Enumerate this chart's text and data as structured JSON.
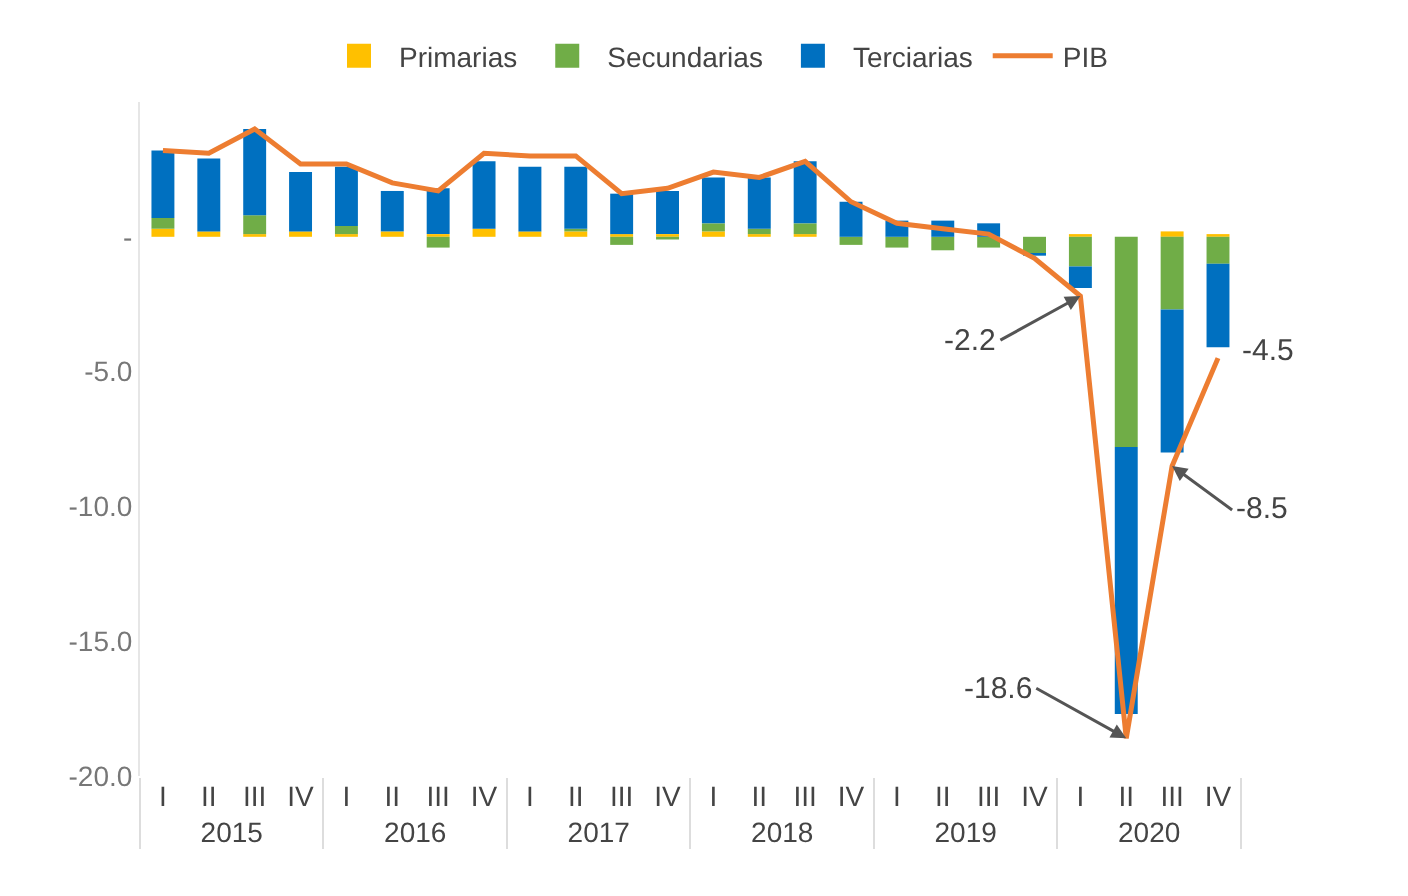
{
  "chart_data": {
    "type": "bar",
    "stacked": true,
    "categories": [
      "I",
      "II",
      "III",
      "IV",
      "I",
      "II",
      "III",
      "IV",
      "I",
      "II",
      "III",
      "IV",
      "I",
      "II",
      "III",
      "IV",
      "I",
      "II",
      "III",
      "IV",
      "I",
      "II",
      "III",
      "IV"
    ],
    "annotations": [
      "2015",
      "2016",
      "2017",
      "2018",
      "2019",
      "2020"
    ],
    "series": [
      {
        "name": "Primarias",
        "color": "#ffc000",
        "values": [
          0.3,
          0.2,
          0.1,
          0.2,
          0.1,
          0.2,
          0.1,
          0.3,
          0.2,
          0.2,
          0.1,
          0.1,
          0.2,
          0.1,
          0.1,
          0.0,
          0.0,
          0.0,
          0.0,
          0.0,
          0.1,
          0.0,
          0.2,
          0.1
        ]
      },
      {
        "name": "Secundarias",
        "color": "#70ad47",
        "values": [
          0.4,
          0.0,
          0.7,
          0.0,
          0.3,
          0.0,
          -0.4,
          0.0,
          0.0,
          0.1,
          -0.3,
          -0.1,
          0.3,
          0.2,
          0.4,
          -0.3,
          -0.4,
          -0.5,
          -0.4,
          -0.6,
          -1.1,
          -7.8,
          -2.7,
          -1.0
        ]
      },
      {
        "name": "Terciarias",
        "color": "#0070c0",
        "values": [
          2.5,
          2.7,
          3.2,
          2.2,
          2.2,
          1.5,
          1.7,
          2.5,
          2.4,
          2.3,
          1.5,
          1.6,
          1.7,
          1.9,
          2.3,
          1.3,
          0.6,
          0.6,
          0.5,
          -0.1,
          -0.8,
          -9.9,
          -5.3,
          -3.1
        ]
      },
      {
        "name": "PIB",
        "type": "line",
        "color": "#ed7d31",
        "marker": "none",
        "values": [
          3.2,
          3.1,
          4.0,
          2.7,
          2.7,
          2.0,
          1.7,
          3.1,
          3.0,
          3.0,
          1.6,
          1.8,
          2.4,
          2.2,
          2.8,
          1.3,
          0.5,
          0.3,
          0.1,
          -0.8,
          -2.2,
          -18.6,
          -8.5,
          -4.5
        ],
        "value_labels": [
          null,
          null,
          null,
          null,
          null,
          null,
          null,
          null,
          null,
          null,
          null,
          null,
          null,
          null,
          null,
          null,
          null,
          null,
          null,
          null,
          "-2.2",
          "-18.6",
          "-8.5",
          "-4.5"
        ]
      }
    ],
    "ylim": [
      -20,
      5
    ],
    "yticks": [
      {
        "value": 0,
        "label": "-"
      },
      {
        "value": -5,
        "label": "-5.0"
      },
      {
        "value": -10,
        "label": "-10.0"
      },
      {
        "value": -15,
        "label": "-15.0"
      },
      {
        "value": -20,
        "label": "-20.0"
      }
    ],
    "grid": false,
    "legend": "top"
  }
}
